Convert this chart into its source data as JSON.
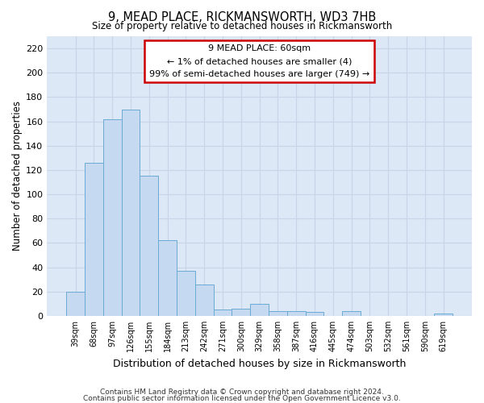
{
  "title1": "9, MEAD PLACE, RICKMANSWORTH, WD3 7HB",
  "title2": "Size of property relative to detached houses in Rickmansworth",
  "xlabel": "Distribution of detached houses by size in Rickmansworth",
  "ylabel": "Number of detached properties",
  "categories": [
    "39sqm",
    "68sqm",
    "97sqm",
    "126sqm",
    "155sqm",
    "184sqm",
    "213sqm",
    "242sqm",
    "271sqm",
    "300sqm",
    "329sqm",
    "358sqm",
    "387sqm",
    "416sqm",
    "445sqm",
    "474sqm",
    "503sqm",
    "532sqm",
    "561sqm",
    "590sqm",
    "619sqm"
  ],
  "values": [
    20,
    126,
    162,
    170,
    115,
    62,
    37,
    26,
    5,
    6,
    10,
    4,
    4,
    3,
    0,
    4,
    0,
    0,
    0,
    0,
    2
  ],
  "bar_color": "#c5d9f0",
  "bar_edge_color": "#6aaad4",
  "ylim": [
    0,
    230
  ],
  "yticks": [
    0,
    20,
    40,
    60,
    80,
    100,
    120,
    140,
    160,
    180,
    200,
    220
  ],
  "annotation_text": "9 MEAD PLACE: 60sqm\n← 1% of detached houses are smaller (4)\n99% of semi-detached houses are larger (749) →",
  "annotation_box_color": "#ffffff",
  "annotation_box_edge": "#cc0000",
  "footer1": "Contains HM Land Registry data © Crown copyright and database right 2024.",
  "footer2": "Contains public sector information licensed under the Open Government Licence v3.0.",
  "grid_color": "#c8d4e8",
  "bg_color": "#dce8f5"
}
